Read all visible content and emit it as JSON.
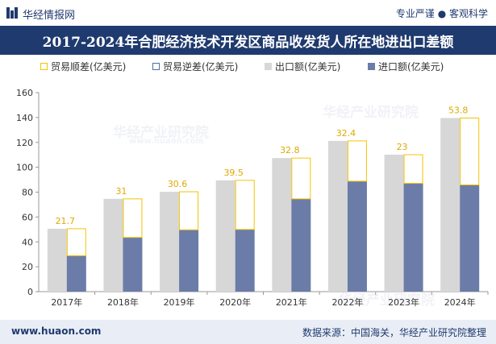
{
  "header": {
    "brand": "华经情报网",
    "tagline": "专业严谨 ● 客观科学"
  },
  "chart_data": {
    "type": "bar",
    "title": "2017-2024年合肥经济技术开发区商品收发货人所在地进出口差额",
    "categories": [
      "2017年",
      "2018年",
      "2019年",
      "2020年",
      "2021年",
      "2022年",
      "2023年",
      "2024年"
    ],
    "series": [
      {
        "name": "贸易顺差(亿美元)",
        "values": [
          21.7,
          31,
          30.6,
          39.5,
          32.8,
          32.4,
          23,
          53.8
        ]
      },
      {
        "name": "贸易逆差(亿美元)",
        "values": [
          null,
          null,
          null,
          null,
          null,
          null,
          null,
          null
        ]
      },
      {
        "name": "出口额(亿美元)",
        "values": [
          50.6,
          74.6,
          80.3,
          89.5,
          107.4,
          121.2,
          110.1,
          139.6
        ]
      },
      {
        "name": "进口额(亿美元)",
        "values": [
          28.9,
          43.6,
          49.7,
          50.0,
          74.6,
          88.8,
          87.1,
          85.8
        ]
      }
    ],
    "data_labels": [
      "21.7",
      "31",
      "30.6",
      "39.5",
      "32.8",
      "32.4",
      "23",
      "53.8"
    ],
    "ylim": [
      0,
      160
    ],
    "yticks": [
      0,
      20,
      40,
      60,
      80,
      100,
      120,
      140,
      160
    ],
    "grid": false,
    "legend_position": "top",
    "colors": {
      "surplus": "#f5c400",
      "deficit": "#4f6ea8",
      "export": "#d7d7d7",
      "import": "#6b7ca8",
      "title_bg": "#1f3a6e"
    }
  },
  "watermark": "华经产业研究院",
  "watermark_url": "www.huaon.com",
  "footer": {
    "site": "www.huaon.com",
    "source": "数据来源：中国海关，华经产业研究院整理"
  }
}
